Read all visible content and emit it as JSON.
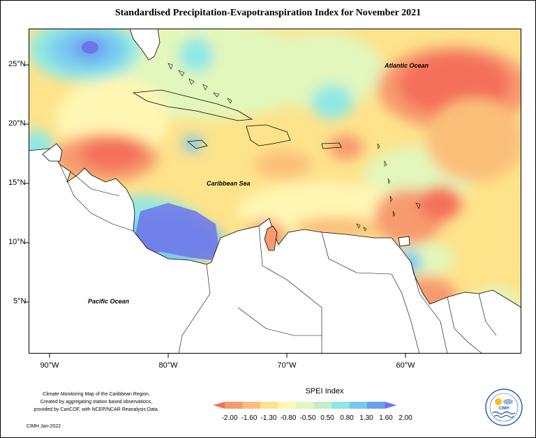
{
  "title": "Standardised Precipitation-Evapotranspiration Index for November 2021",
  "map": {
    "y_ticks": [
      "25°N",
      "20°N",
      "15°N",
      "10°N",
      "5°N"
    ],
    "x_ticks": [
      "90°W",
      "80°W",
      "70°W",
      "60°W"
    ],
    "labels": {
      "atlantic": "Atlantic Ocean",
      "caribbean": "Caribbean Sea",
      "pacific": "Pacific Ocean"
    }
  },
  "legend": {
    "title": "SPEI Index",
    "labels": [
      "-2.00",
      "-1.60",
      "-1.30",
      "-0.80",
      "-0.50",
      "0.50",
      "0.80",
      "1.30",
      "1.60",
      "2.00"
    ],
    "colors": [
      "#f4705a",
      "#f79a6e",
      "#fbbf7a",
      "#fde38a",
      "#fff6b3",
      "#e2f7bb",
      "#c0f0c8",
      "#8fe8e3",
      "#78c8f0",
      "#6a9ff0",
      "#6f74e8"
    ]
  },
  "credits": {
    "line1": "Climate Monitoring Map of the Caribbean Region.",
    "line2": "Created by aggregating station based observations,",
    "line3": "provided by CariCOF, with NCEP/NCAR Reanalysis Data.",
    "date": "CIMH Jan-2022"
  },
  "logo": {
    "text": "CIMH"
  }
}
